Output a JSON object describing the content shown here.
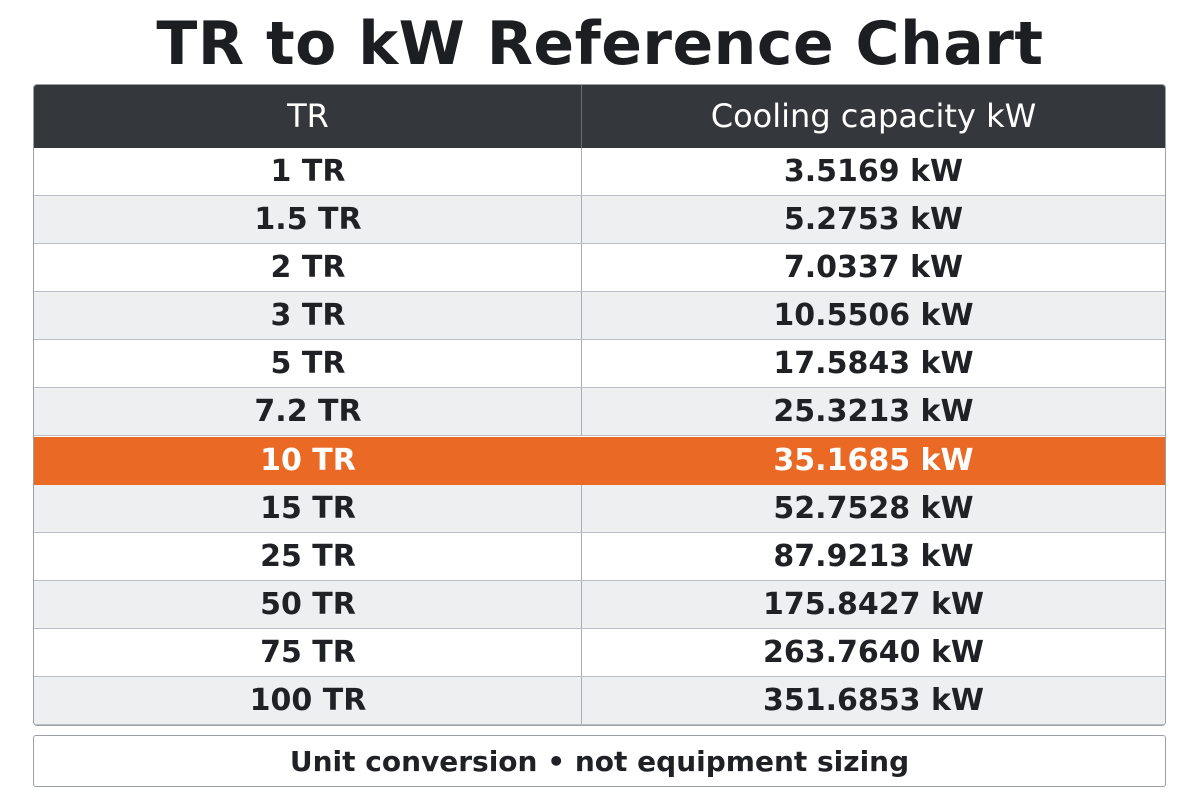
{
  "chart_data": {
    "type": "table",
    "title": "TR to kW Reference Chart",
    "columns": [
      "TR",
      "Cooling capacity kW"
    ],
    "rows": [
      [
        "1 TR",
        "3.5169 kW"
      ],
      [
        "1.5 TR",
        "5.2753 kW"
      ],
      [
        "2 TR",
        "7.0337 kW"
      ],
      [
        "3 TR",
        "10.5506 kW"
      ],
      [
        "5 TR",
        "17.5843 kW"
      ],
      [
        "7.2 TR",
        "25.3213 kW"
      ],
      [
        "10 TR",
        "35.1685 kW"
      ],
      [
        "15 TR",
        "52.7528 kW"
      ],
      [
        "25 TR",
        "87.9213 kW"
      ],
      [
        "50 TR",
        "175.8427 kW"
      ],
      [
        "75 TR",
        "263.7640 kW"
      ],
      [
        "100 TR",
        "351.6853 kW"
      ]
    ],
    "highlighted_row": 6,
    "highlight_color": "#ea6a25",
    "header_color": "#34373b",
    "footnote": "Unit conversion • not equipment sizing"
  }
}
